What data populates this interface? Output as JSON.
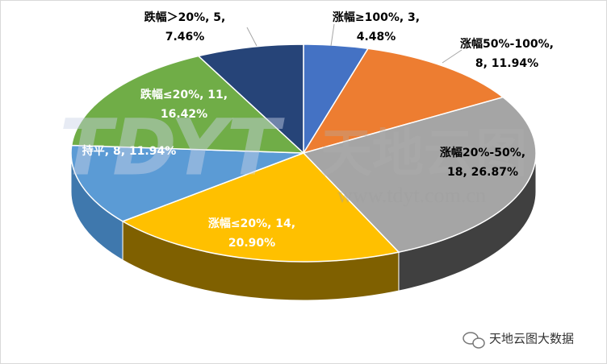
{
  "chart_data": {
    "type": "pie3d",
    "categories": [
      "涨幅≥100%",
      "涨幅50%-100%",
      "涨幅20%-50%",
      "涨幅≤20%",
      "持平",
      "跌幅≤20%",
      "跌幅＞20%"
    ],
    "values": [
      3,
      8,
      18,
      14,
      8,
      11,
      5
    ],
    "value_labels": [
      "涨幅≥100%, 3,\n4.48%",
      "涨幅50%-100%,\n8, 11.94%",
      "涨幅20%-50%,\n18, 26.87%",
      "涨幅≤20%, 14,\n20.90%",
      "持平, 8, 11.94%",
      "跌幅≤20%, 11,\n16.42%",
      "跌幅＞20%, 5,\n7.46%"
    ],
    "colors": [
      "#4472c4",
      "#ed7d31",
      "#a5a5a5",
      "#ffc000",
      "#5b9bd5",
      "#70ad47",
      "#264478"
    ],
    "side_colors": [
      "#2f5597",
      "#b45a1d",
      "#404040",
      "#7f6000",
      "#3f78ad",
      "#4e7a32",
      "#1a2f54"
    ]
  },
  "watermark": {
    "logo": "TDYT",
    "name": "天地云图",
    "url": "www.tdyt.com.cn"
  },
  "footer": "天地云图大数据"
}
